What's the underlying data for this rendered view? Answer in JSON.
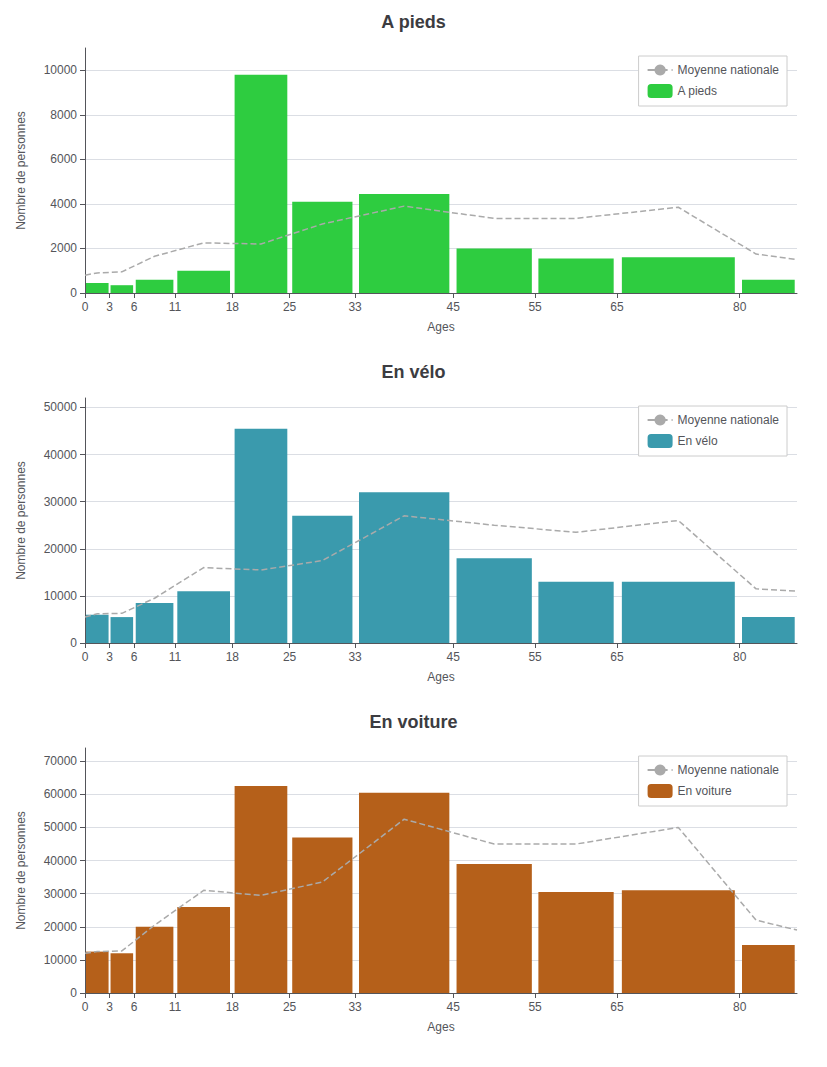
{
  "chart_data": [
    {
      "type": "bar",
      "title": "A pieds",
      "xlabel": "Ages",
      "ylabel": "Nombre de personnes",
      "bins": [
        0,
        3,
        6,
        11,
        18,
        25,
        33,
        45,
        55,
        65,
        80,
        87
      ],
      "series": [
        {
          "name": "Moyenne nationale",
          "type": "line",
          "color": "#aaaaaa",
          "line_style": "dashed",
          "x": [
            0,
            1.5,
            4.5,
            8.5,
            14.5,
            21.5,
            29,
            39,
            50,
            60,
            72.5,
            82,
            87
          ],
          "values": [
            800,
            900,
            950,
            1650,
            2250,
            2200,
            3100,
            3900,
            3350,
            3350,
            3850,
            1750,
            1500
          ]
        },
        {
          "name": "A pieds",
          "type": "bar",
          "color": "#2ecc40",
          "values": [
            450,
            350,
            600,
            1000,
            9800,
            4100,
            4450,
            2000,
            1550,
            1600,
            600
          ]
        }
      ],
      "xlim": [
        0,
        87
      ],
      "xticks": [
        0,
        3,
        6,
        11,
        18,
        25,
        33,
        45,
        55,
        65,
        80
      ],
      "ylim": [
        0,
        11000
      ],
      "yticks": [
        0,
        2000,
        4000,
        6000,
        8000,
        10000
      ],
      "grid": true,
      "legend": "upper right"
    },
    {
      "type": "bar",
      "title": "En vélo",
      "xlabel": "Ages",
      "ylabel": "Nombre de personnes",
      "bins": [
        0,
        3,
        6,
        11,
        18,
        25,
        33,
        45,
        55,
        65,
        80,
        87
      ],
      "series": [
        {
          "name": "Moyenne nationale",
          "type": "line",
          "color": "#aaaaaa",
          "line_style": "dashed",
          "x": [
            0,
            1.5,
            4.5,
            8.5,
            14.5,
            21.5,
            29,
            39,
            50,
            60,
            72.5,
            82,
            87
          ],
          "values": [
            5500,
            6200,
            6300,
            9500,
            16000,
            15500,
            17500,
            27000,
            25000,
            23500,
            26000,
            11500,
            11000
          ]
        },
        {
          "name": "En vélo",
          "type": "bar",
          "color": "#3a9aad",
          "values": [
            6000,
            5500,
            8500,
            11000,
            45500,
            27000,
            32000,
            18000,
            13000,
            13000,
            5500
          ]
        }
      ],
      "xlim": [
        0,
        87
      ],
      "xticks": [
        0,
        3,
        6,
        11,
        18,
        25,
        33,
        45,
        55,
        65,
        80
      ],
      "ylim": [
        0,
        52000
      ],
      "yticks": [
        0,
        10000,
        20000,
        30000,
        40000,
        50000
      ],
      "grid": true,
      "legend": "upper right"
    },
    {
      "type": "bar",
      "title": "En voiture",
      "xlabel": "Ages",
      "ylabel": "Nombre de personnes",
      "bins": [
        0,
        3,
        6,
        11,
        18,
        25,
        33,
        45,
        55,
        65,
        80,
        87
      ],
      "series": [
        {
          "name": "Moyenne nationale",
          "type": "line",
          "color": "#aaaaaa",
          "line_style": "dashed",
          "x": [
            0,
            1.5,
            4.5,
            8.5,
            14.5,
            21.5,
            29,
            39,
            50,
            60,
            72.5,
            82,
            87
          ],
          "values": [
            12000,
            12500,
            12700,
            20500,
            31000,
            29500,
            33500,
            52500,
            45000,
            45000,
            50000,
            22000,
            19000
          ]
        },
        {
          "name": "En voiture",
          "type": "bar",
          "color": "#b5601a",
          "values": [
            12500,
            12000,
            20000,
            26000,
            62500,
            47000,
            60500,
            39000,
            30500,
            31000,
            14500
          ]
        }
      ],
      "xlim": [
        0,
        87
      ],
      "xticks": [
        0,
        3,
        6,
        11,
        18,
        25,
        33,
        45,
        55,
        65,
        80
      ],
      "ylim": [
        0,
        74000
      ],
      "yticks": [
        0,
        10000,
        20000,
        30000,
        40000,
        50000,
        60000,
        70000
      ],
      "grid": true,
      "legend": "upper right"
    }
  ]
}
